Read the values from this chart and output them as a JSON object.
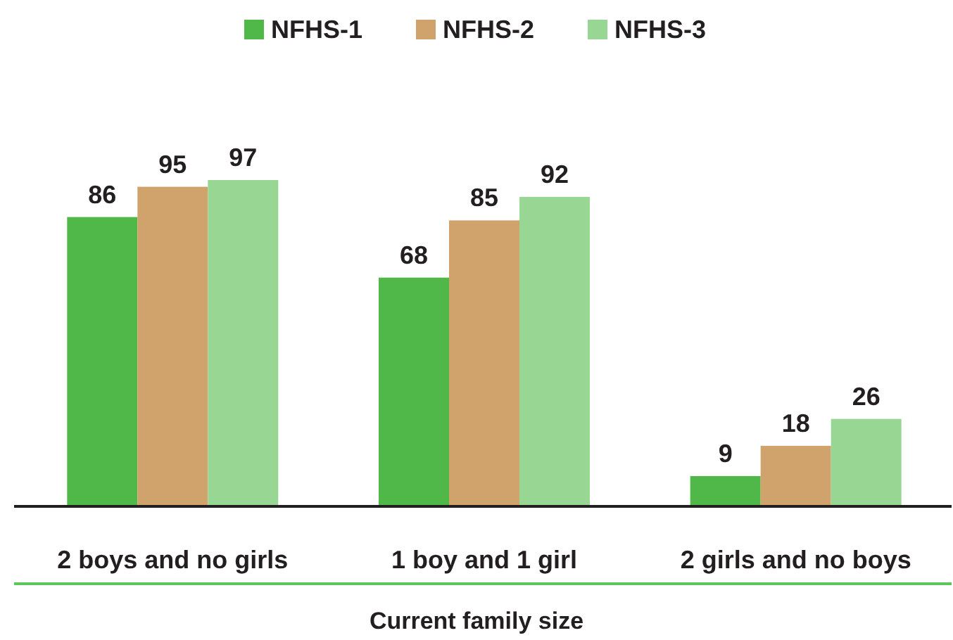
{
  "chart_data": {
    "type": "bar",
    "xlabel": "Current family size",
    "categories": [
      "2 boys and no girls",
      "1 boy and 1 girl",
      "2 girls and no boys"
    ],
    "series": [
      {
        "name": "NFHS-1",
        "color": "#4fb848",
        "values": [
          86,
          68,
          9
        ]
      },
      {
        "name": "NFHS-2",
        "color": "#cfa36b",
        "values": [
          95,
          85,
          18
        ]
      },
      {
        "name": "NFHS-3",
        "color": "#98d694",
        "values": [
          97,
          92,
          26
        ]
      }
    ],
    "data_labels": true,
    "legend": "top",
    "grid": false
  }
}
